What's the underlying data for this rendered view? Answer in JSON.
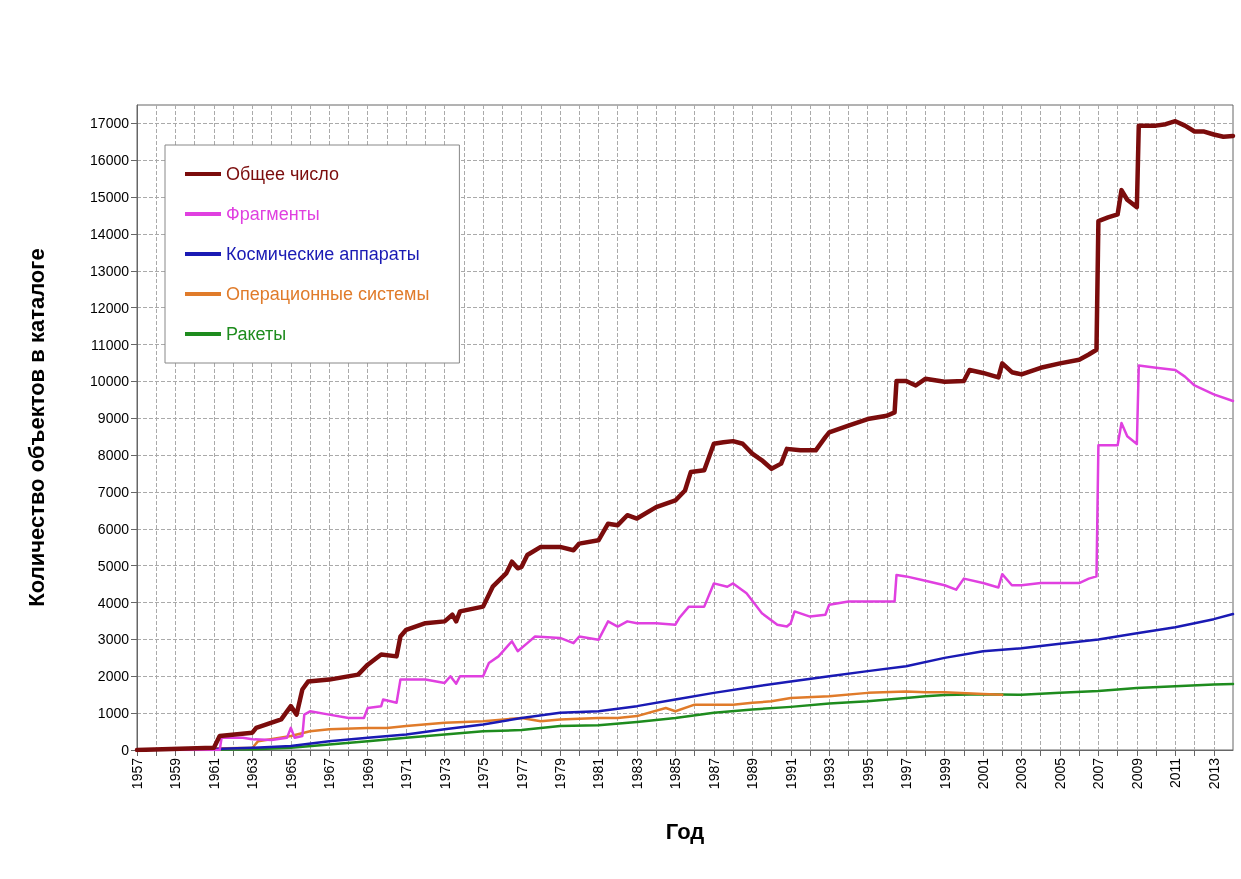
{
  "chart_data": {
    "type": "line",
    "xlabel": "Год",
    "ylabel": "Количество объектов в каталоге",
    "xlim": [
      1957,
      2014
    ],
    "ylim": [
      0,
      17500
    ],
    "xticks": [
      1957,
      {
        "value": 1958,
        "label": null
      },
      1959,
      {
        "value": 1960,
        "label": null
      },
      1961,
      {
        "value": 1962,
        "label": null
      },
      1963,
      {
        "value": 1964,
        "label": null
      },
      1965,
      {
        "value": 1966,
        "label": null
      },
      1967,
      {
        "value": 1968,
        "label": null
      },
      1969,
      {
        "value": 1970,
        "label": null
      },
      1971,
      {
        "value": 1972,
        "label": null
      },
      1973,
      {
        "value": 1974,
        "label": null
      },
      1975,
      {
        "value": 1976,
        "label": null
      },
      1977,
      {
        "value": 1978,
        "label": null
      },
      1979,
      {
        "value": 1980,
        "label": null
      },
      1981,
      {
        "value": 1982,
        "label": null
      },
      1983,
      {
        "value": 1984,
        "label": null
      },
      1985,
      {
        "value": 1986,
        "label": null
      },
      1987,
      {
        "value": 1988,
        "label": null
      },
      1989,
      {
        "value": 1990,
        "label": null
      },
      1991,
      {
        "value": 1992,
        "label": null
      },
      1993,
      {
        "value": 1994,
        "label": null
      },
      1995,
      {
        "value": 1996,
        "label": null
      },
      1997,
      {
        "value": 1998,
        "label": null
      },
      1999,
      {
        "value": 2000,
        "label": null
      },
      2001,
      {
        "value": 2002,
        "label": null
      },
      2003,
      {
        "value": 2004,
        "label": null
      },
      2005,
      {
        "value": 2006,
        "label": null
      },
      2007,
      {
        "value": 2008,
        "label": null
      },
      2009,
      {
        "value": 2010,
        "label": null
      },
      2011,
      {
        "value": 2012,
        "label": null
      },
      2013
    ],
    "yticks": [
      0,
      1000,
      2000,
      3000,
      4000,
      5000,
      6000,
      7000,
      8000,
      9000,
      10000,
      11000,
      12000,
      13000,
      14000,
      15000,
      16000,
      17000
    ],
    "grid": true,
    "legend": "top left",
    "series": [
      {
        "name": "Общее число",
        "color": "#7b0c0c",
        "x": [
          1957,
          1961,
          1961.3,
          1963,
          1963.2,
          1964.5,
          1965,
          1965.3,
          1965.6,
          1965.9,
          1967,
          1968.5,
          1969,
          1969.7,
          1970.5,
          1970.7,
          1971,
          1972,
          1973,
          1973.4,
          1973.6,
          1973.8,
          1975,
          1975.5,
          1976.2,
          1976.5,
          1976.8,
          1977,
          1977.3,
          1978,
          1979,
          1979.7,
          1980,
          1981,
          1981.5,
          1982,
          1982.5,
          1983,
          1984,
          1985,
          1985.5,
          1985.8,
          1986.5,
          1987,
          1987.5,
          1988,
          1988.5,
          1989,
          1989.5,
          1990,
          1990.5,
          1990.8,
          1991.5,
          1992.3,
          1992.8,
          1993,
          1994,
          1995,
          1996,
          1996.4,
          1996.5,
          1997,
          1997.5,
          1998,
          1999,
          2000,
          2000.3,
          2001,
          2001.8,
          2002,
          2002.5,
          2003,
          2004,
          2005,
          2006,
          2006.5,
          2006.9,
          2007,
          2007.5,
          2008,
          2008.2,
          2008.5,
          2009,
          2009.1,
          2010,
          2010.5,
          2011,
          2011.5,
          2012,
          2012.5,
          2013,
          2013.5,
          2014
        ],
        "values": [
          0,
          60,
          380,
          470,
          600,
          830,
          1190,
          960,
          1640,
          1860,
          1910,
          2045,
          2315,
          2590,
          2540,
          3080,
          3260,
          3440,
          3490,
          3670,
          3490,
          3760,
          3890,
          4430,
          4790,
          5110,
          4930,
          4970,
          5290,
          5510,
          5510,
          5420,
          5600,
          5690,
          6140,
          6100,
          6370,
          6280,
          6590,
          6770,
          7040,
          7540,
          7590,
          8310,
          8350,
          8380,
          8310,
          8040,
          7860,
          7630,
          7770,
          8170,
          8130,
          8130,
          8490,
          8620,
          8800,
          8980,
          9070,
          9160,
          10010,
          10010,
          9890,
          10070,
          9990,
          10010,
          10310,
          10230,
          10110,
          10490,
          10250,
          10190,
          10370,
          10490,
          10590,
          10730,
          10860,
          14350,
          14450,
          14530,
          15190,
          14930,
          14730,
          16940,
          16940,
          16980,
          17060,
          16940,
          16780,
          16780,
          16700,
          16640,
          16660
        ]
      },
      {
        "name": "Фрагменты",
        "color": "#e040e0",
        "x": [
          1957,
          1961.3,
          1961.4,
          1962.5,
          1963,
          1964,
          1964.8,
          1965,
          1965.2,
          1965.6,
          1965.7,
          1966,
          1967,
          1968,
          1968.8,
          1969,
          1969.7,
          1969.8,
          1970.5,
          1970.7,
          1972,
          1973,
          1973.3,
          1973.6,
          1973.8,
          1975,
          1975.3,
          1975.8,
          1976.5,
          1976.8,
          1977.3,
          1977.7,
          1979,
          1979.7,
          1980,
          1981,
          1981.5,
          1982,
          1982.5,
          1983,
          1984,
          1985,
          1985.2,
          1985.7,
          1986.5,
          1987,
          1987.7,
          1988,
          1988.7,
          1989.5,
          1990.3,
          1990.8,
          1991,
          1991.2,
          1992,
          1992.8,
          1993,
          1994,
          1995,
          1996.4,
          1996.5,
          1997,
          1998,
          1999,
          1999.6,
          2000,
          2001,
          2001.8,
          2002,
          2002.5,
          2003,
          2004,
          2005,
          2006,
          2006.5,
          2006.9,
          2007,
          2008,
          2008.2,
          2008.5,
          2009,
          2009.1,
          2010,
          2011,
          2011.5,
          2012,
          2012.5,
          2013,
          2014
        ],
        "values": [
          0,
          0,
          330,
          330,
          290,
          270,
          330,
          600,
          330,
          380,
          960,
          1050,
          960,
          870,
          870,
          1140,
          1190,
          1370,
          1280,
          1910,
          1910,
          1820,
          2000,
          1800,
          2000,
          2000,
          2360,
          2540,
          2950,
          2680,
          2900,
          3080,
          3040,
          2900,
          3080,
          2990,
          3490,
          3350,
          3490,
          3440,
          3440,
          3400,
          3580,
          3890,
          3890,
          4520,
          4430,
          4520,
          4250,
          3710,
          3400,
          3350,
          3440,
          3760,
          3620,
          3670,
          3940,
          4030,
          4030,
          4030,
          4750,
          4710,
          4590,
          4470,
          4350,
          4650,
          4530,
          4410,
          4770,
          4470,
          4470,
          4530,
          4530,
          4530,
          4650,
          4710,
          8270,
          8270,
          8870,
          8510,
          8300,
          10430,
          10370,
          10310,
          10130,
          9890,
          9770,
          9650,
          9470
        ]
      },
      {
        "name": "Космические аппараты",
        "color": "#1a1ab4",
        "x": [
          1957,
          1961,
          1963,
          1965,
          1967,
          1969,
          1971,
          1973,
          1975,
          1977,
          1979,
          1981,
          1983,
          1985,
          1987,
          1989,
          1991,
          1993,
          1995,
          1997,
          1999,
          2001,
          2003,
          2005,
          2007,
          2009,
          2011,
          2013,
          2014
        ],
        "values": [
          0,
          30,
          60,
          110,
          240,
          330,
          420,
          560,
          690,
          870,
          1010,
          1050,
          1190,
          1370,
          1550,
          1710,
          1860,
          2000,
          2140,
          2270,
          2500,
          2680,
          2760,
          2880,
          3000,
          3170,
          3330,
          3550,
          3690
        ]
      },
      {
        "name": "Операционные системы",
        "color": "#e07b2a",
        "x": [
          1957,
          1963,
          1963.3,
          1965,
          1966,
          1967,
          1969,
          1970,
          1971,
          1973,
          1975,
          1977,
          1978,
          1979,
          1981,
          1982,
          1983,
          1984.5,
          1985,
          1986,
          1987,
          1988,
          1989,
          1990,
          1991,
          1993,
          1995,
          1997,
          1998,
          1999,
          2001,
          2002
        ],
        "values": [
          0,
          60,
          240,
          380,
          510,
          560,
          600,
          600,
          650,
          740,
          780,
          870,
          780,
          830,
          870,
          870,
          920,
          1140,
          1050,
          1230,
          1230,
          1230,
          1280,
          1320,
          1410,
          1460,
          1550,
          1590,
          1570,
          1570,
          1520,
          1500
        ]
      },
      {
        "name": "Ракеты",
        "color": "#1e8c1e",
        "x": [
          1957,
          1963,
          1965,
          1967,
          1969,
          1971,
          1973,
          1975,
          1977,
          1979,
          1981,
          1983,
          1985,
          1987,
          1989,
          1991,
          1993,
          1995,
          1997,
          1998,
          1999,
          2001,
          2003,
          2005,
          2007,
          2009,
          2011,
          2013,
          2014
        ],
        "values": [
          0,
          20,
          60,
          150,
          240,
          330,
          420,
          510,
          540,
          650,
          670,
          760,
          870,
          1010,
          1100,
          1170,
          1260,
          1320,
          1410,
          1460,
          1490,
          1510,
          1500,
          1550,
          1600,
          1680,
          1730,
          1780,
          1790
        ]
      }
    ]
  }
}
